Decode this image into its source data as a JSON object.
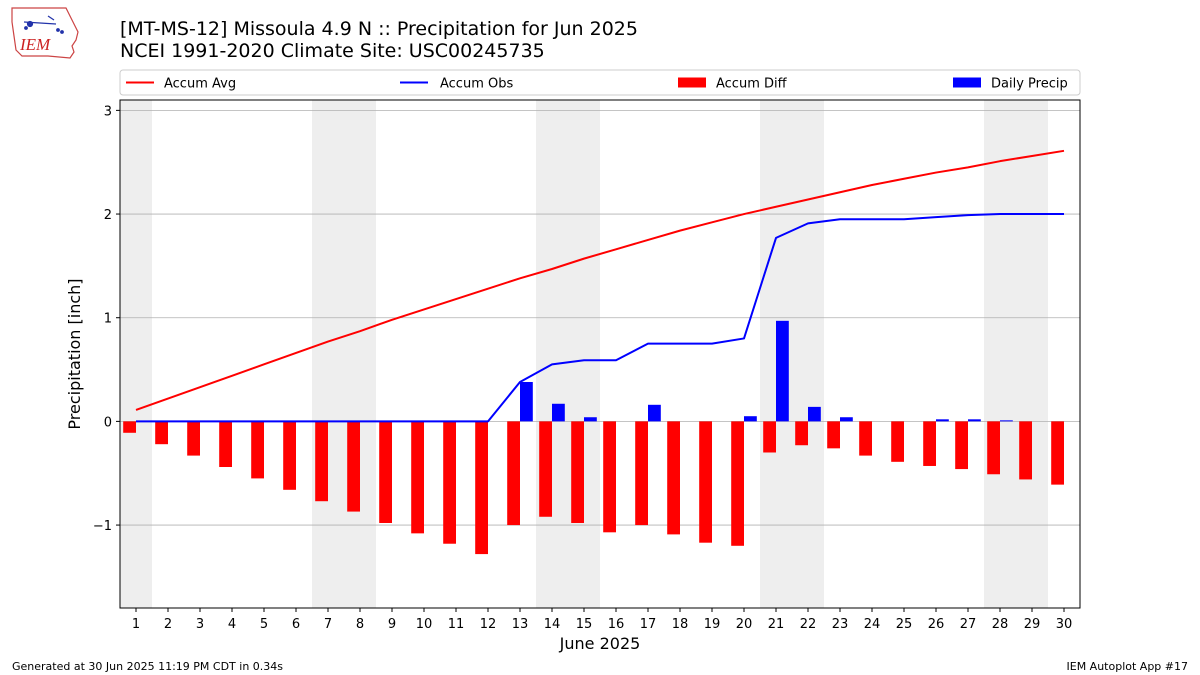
{
  "header": {
    "title_line1": "[MT-MS-12] Missoula 4.9 N :: Precipitation for Jun 2025",
    "title_line2": "NCEI 1991-2020 Climate Site: USC00245735",
    "logo_text": "IEM"
  },
  "footer": {
    "left": "Generated at 30 Jun 2025 11:19 PM CDT in 0.34s",
    "right": "IEM Autoplot App #17"
  },
  "chart_data": {
    "type": "bar",
    "xlabel": "June 2025",
    "ylabel": "Precipitation [inch]",
    "ylim": [
      -1.8,
      3.1
    ],
    "yticks": [
      3,
      2,
      1,
      0,
      -1
    ],
    "ytick_labels": [
      "3",
      "2",
      "1",
      "0",
      "−1"
    ],
    "grid": true,
    "legend_position": "top",
    "days": [
      1,
      2,
      3,
      4,
      5,
      6,
      7,
      8,
      9,
      10,
      11,
      12,
      13,
      14,
      15,
      16,
      17,
      18,
      19,
      20,
      21,
      22,
      23,
      24,
      25,
      26,
      27,
      28,
      29,
      30
    ],
    "weekend_shading": [
      [
        1,
        1
      ],
      [
        7,
        8
      ],
      [
        14,
        15
      ],
      [
        21,
        22
      ],
      [
        28,
        29
      ]
    ],
    "legend": [
      {
        "label": "Accum Avg",
        "kind": "line",
        "color": "#ff0000"
      },
      {
        "label": "Accum Obs",
        "kind": "line",
        "color": "#0000ff"
      },
      {
        "label": "Accum Diff",
        "kind": "bar",
        "color": "#ff0000"
      },
      {
        "label": "Daily Precip",
        "kind": "bar",
        "color": "#0000ff"
      }
    ],
    "series": [
      {
        "name": "Accum Avg",
        "kind": "line",
        "color": "#ff0000",
        "values": [
          0.11,
          0.22,
          0.33,
          0.44,
          0.55,
          0.66,
          0.77,
          0.87,
          0.98,
          1.08,
          1.18,
          1.28,
          1.38,
          1.47,
          1.57,
          1.66,
          1.75,
          1.84,
          1.92,
          2.0,
          2.07,
          2.14,
          2.21,
          2.28,
          2.34,
          2.4,
          2.45,
          2.51,
          2.56,
          2.61
        ]
      },
      {
        "name": "Accum Obs",
        "kind": "line",
        "color": "#0000ff",
        "values": [
          0,
          0,
          0,
          0,
          0,
          0,
          0,
          0,
          0,
          0,
          0,
          0,
          0.38,
          0.55,
          0.59,
          0.59,
          0.75,
          0.75,
          0.75,
          0.8,
          1.77,
          1.91,
          1.95,
          1.95,
          1.95,
          1.97,
          1.99,
          2.0,
          2.0,
          2.0
        ]
      },
      {
        "name": "Accum Diff",
        "kind": "bar",
        "color": "#ff0000",
        "values": [
          -0.11,
          -0.22,
          -0.33,
          -0.44,
          -0.55,
          -0.66,
          -0.77,
          -0.87,
          -0.98,
          -1.08,
          -1.18,
          -1.28,
          -1.0,
          -0.92,
          -0.98,
          -1.07,
          -1.0,
          -1.09,
          -1.17,
          -1.2,
          -0.3,
          -0.23,
          -0.26,
          -0.33,
          -0.39,
          -0.43,
          -0.46,
          -0.51,
          -0.56,
          -0.61
        ]
      },
      {
        "name": "Daily Precip",
        "kind": "bar",
        "color": "#0000ff",
        "values": [
          0,
          0,
          0,
          0,
          0,
          0,
          0,
          0,
          0,
          0,
          0,
          0,
          0.38,
          0.17,
          0.04,
          0,
          0.16,
          0,
          0,
          0.05,
          0.97,
          0.14,
          0.04,
          0,
          0,
          0.02,
          0.02,
          0.01,
          0,
          0
        ]
      }
    ]
  }
}
